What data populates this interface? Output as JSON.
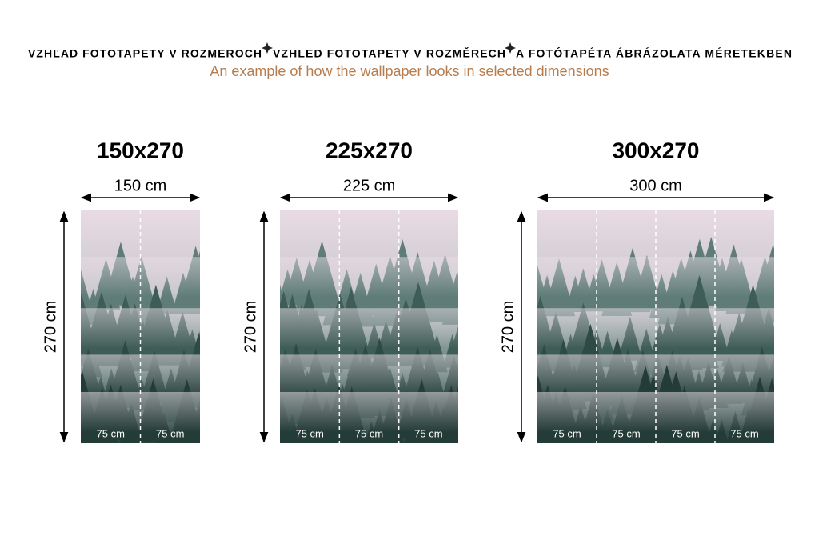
{
  "header": {
    "title": [
      "VZHĽAD FOTOTAPETY V ROZMEROCH",
      "VZHLED FOTOTAPETY V ROZMĚRECH",
      "A FOTÓTAPÉTA ÁBRÁZOLATA MÉRETEKBEN"
    ],
    "subtitle": "An example of how the wallpaper looks in selected dimensions"
  },
  "panels": [
    {
      "size": "150x270",
      "width": "150 cm",
      "height": "270 cm",
      "strips": [
        "75 cm",
        "75 cm"
      ]
    },
    {
      "size": "225x270",
      "width": "225 cm",
      "height": "270 cm",
      "strips": [
        "75 cm",
        "75 cm",
        "75 cm"
      ]
    },
    {
      "size": "300x270",
      "width": "300 cm",
      "height": "270 cm",
      "strips": [
        "75 cm",
        "75 cm",
        "75 cm",
        "75 cm"
      ]
    }
  ]
}
